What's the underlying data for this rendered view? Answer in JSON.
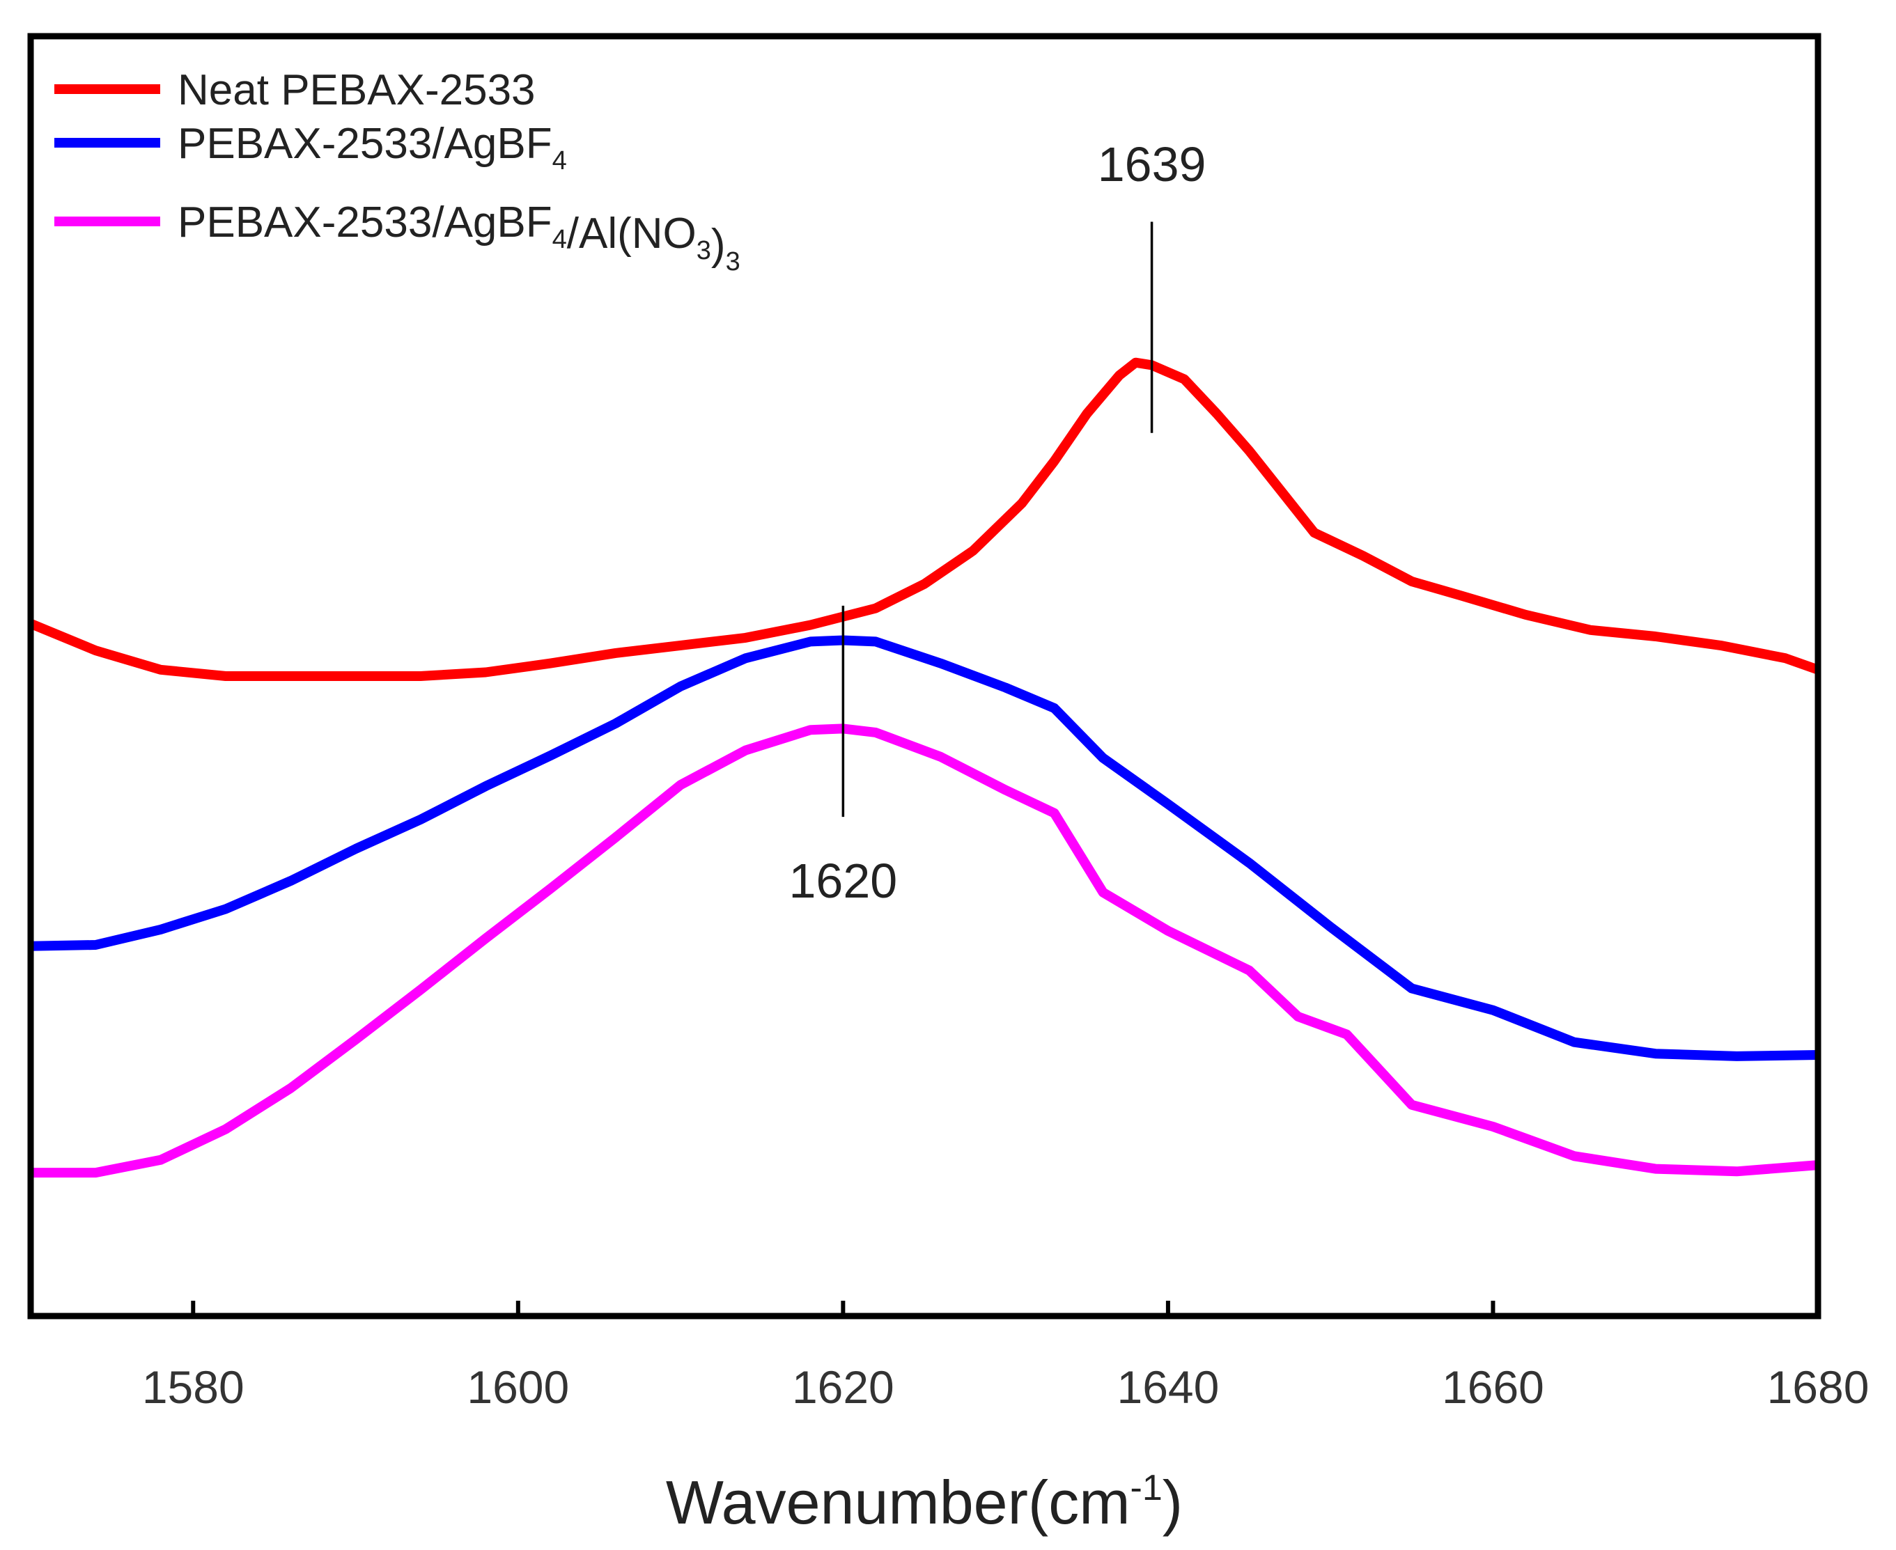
{
  "chart_data": {
    "type": "line",
    "title": "",
    "xlabel": "Wavenumber(cm",
    "xlabel_sup": "-1",
    "xlabel_close": ")",
    "ylabel": "",
    "xlim": [
      1570,
      1680
    ],
    "ylim": [
      0,
      100
    ],
    "xticks": [
      1580,
      1600,
      1620,
      1640,
      1660,
      1680
    ],
    "legend": "top-left",
    "series": [
      {
        "name": "Neat PEBAX-2533",
        "legend_label": {
          "parts": [
            {
              "text": "Neat PEBAX-2533"
            }
          ]
        },
        "color": "#ff0000",
        "x": [
          1570,
          1574,
          1578,
          1582,
          1586,
          1590,
          1594,
          1598,
          1602,
          1606,
          1610,
          1614,
          1618,
          1622,
          1625,
          1628,
          1631,
          1633,
          1635,
          1637,
          1638,
          1639,
          1641,
          1643,
          1645,
          1647,
          1649,
          1652,
          1655,
          1658,
          1662,
          1666,
          1670,
          1674,
          1678,
          1680
        ],
        "y": [
          54.1,
          52.0,
          50.5,
          50.0,
          50.0,
          50.0,
          50.0,
          50.3,
          51.0,
          51.8,
          52.4,
          53.0,
          54.0,
          55.3,
          57.2,
          59.8,
          63.5,
          66.8,
          70.5,
          73.5,
          74.5,
          74.3,
          73.2,
          70.5,
          67.6,
          64.4,
          61.2,
          59.4,
          57.4,
          56.3,
          54.8,
          53.6,
          53.1,
          52.4,
          51.4,
          50.5
        ]
      },
      {
        "name": "PEBAX-2533/AgBF4",
        "legend_label": {
          "parts": [
            {
              "text": "PEBAX-2533/AgBF"
            },
            {
              "text": "4",
              "sub": true
            }
          ]
        },
        "color": "#0000ff",
        "x": [
          1570,
          1574,
          1578,
          1582,
          1586,
          1590,
          1594,
          1598,
          1602,
          1606,
          1610,
          1614,
          1618,
          1620,
          1622,
          1626,
          1630,
          1633,
          1636,
          1640,
          1645,
          1650,
          1655,
          1660,
          1665,
          1670,
          1675,
          1680
        ],
        "y": [
          28.9,
          29.0,
          30.2,
          31.8,
          34.0,
          36.5,
          38.8,
          41.4,
          43.8,
          46.3,
          49.2,
          51.4,
          52.7,
          52.8,
          52.7,
          51.0,
          49.1,
          47.5,
          43.6,
          40.0,
          35.4,
          30.4,
          25.6,
          23.9,
          21.4,
          20.5,
          20.3,
          20.4
        ]
      },
      {
        "name": "PEBAX-2533/AgBF4/Al(NO3)3",
        "legend_label": {
          "parts": [
            {
              "text": "PEBAX-2533/AgBF"
            },
            {
              "text": "4",
              "sub": true
            },
            {
              "text": "/Al(NO"
            },
            {
              "text": "3",
              "sub": true
            },
            {
              "text": ")"
            },
            {
              "text": "3",
              "sub": true
            }
          ]
        },
        "color": "#ff00ff",
        "x": [
          1570,
          1574,
          1578,
          1582,
          1586,
          1590,
          1594,
          1598,
          1602,
          1606,
          1610,
          1614,
          1618,
          1620,
          1622,
          1626,
          1630,
          1633,
          1636,
          1640,
          1645,
          1648,
          1651,
          1655,
          1660,
          1665,
          1670,
          1675,
          1680
        ],
        "y": [
          11.2,
          11.2,
          12.2,
          14.6,
          17.8,
          21.6,
          25.5,
          29.5,
          33.4,
          37.4,
          41.5,
          44.2,
          45.8,
          45.9,
          45.6,
          43.7,
          41.1,
          39.3,
          33.1,
          30.1,
          27.0,
          23.4,
          22.0,
          16.5,
          14.8,
          12.5,
          11.5,
          11.3,
          11.8
        ]
      }
    ],
    "annotations": [
      {
        "label": "1639",
        "x": 1639,
        "line_y": [
          69,
          85.5
        ],
        "label_y": 90
      },
      {
        "label": "1620",
        "x": 1620,
        "line_y": [
          39,
          55.5
        ],
        "label_y": 34
      }
    ],
    "tick_labels": [
      "1580",
      "1600",
      "1620",
      "1640",
      "1660",
      "1680"
    ]
  }
}
